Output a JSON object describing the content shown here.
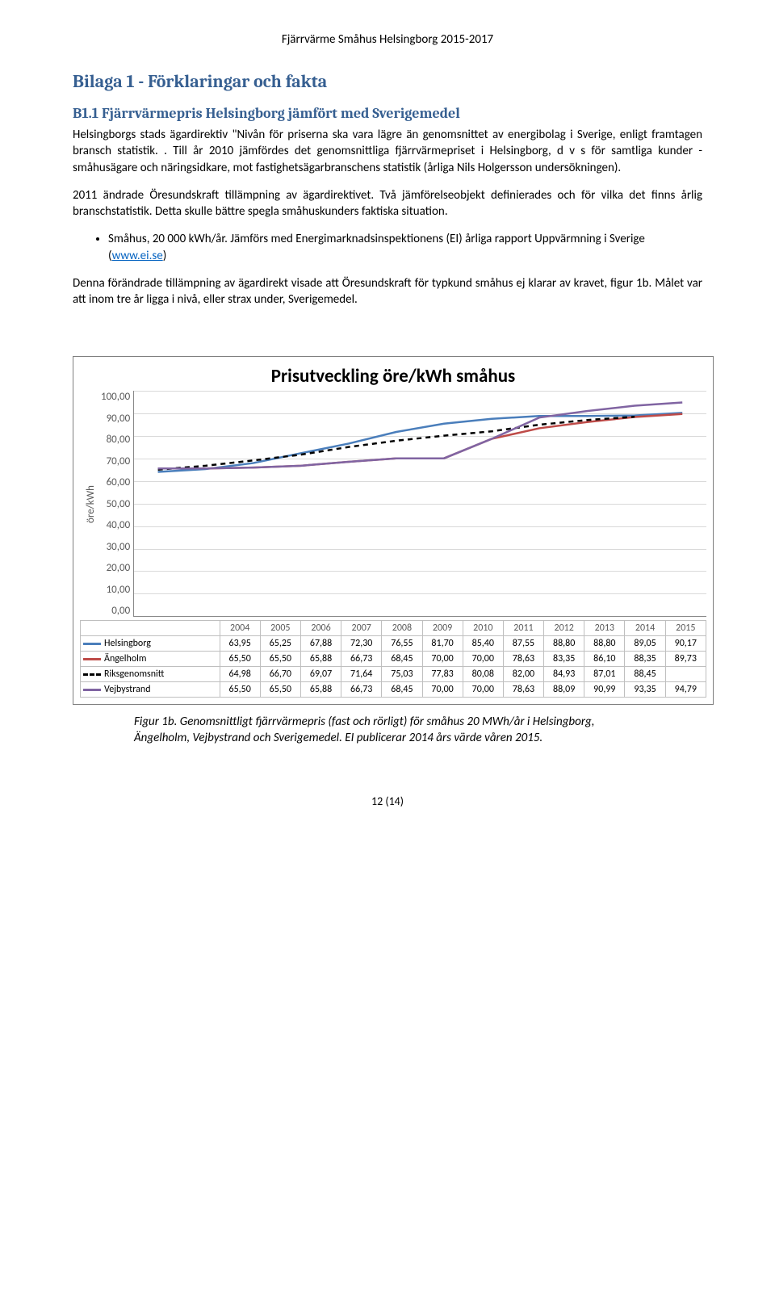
{
  "doc": {
    "header": "Fjärrvärme Småhus Helsingborg 2015-2017",
    "section_title": "Bilaga 1 - Förklaringar och fakta",
    "subsection_title": "B1.1 Fjärrvärmepris Helsingborg jämfört med Sverigemedel",
    "para1": "Helsingborgs stads ägardirektiv \"Nivån för priserna ska vara lägre än genomsnittet av energibolag i Sverige, enligt framtagen bransch statistik. . Till år 2010 jämfördes det genomsnittliga fjärrvärmepriset i Helsingborg, d v s för samtliga kunder - småhusägare och näringsidkare, mot fastighetsägarbranschens statistik (årliga Nils Holgersson undersökningen).",
    "para2": "2011 ändrade Öresundskraft tillämpning av ägardirektivet. Två jämförelseobjekt definierades och för vilka det finns årlig branschstatistik. Detta skulle bättre spegla småhuskunders faktiska situation.",
    "bullet1_a": "Småhus, 20 000 kWh/år. Jämförs med Energimarknadsinspektionens (EI) årliga rapport Uppvärmning i Sverige (",
    "bullet1_link": "www.ei.se",
    "bullet1_b": ")",
    "para3": "Denna förändrade tillämpning av ägardirekt visade att Öresundskraft för typkund småhus ej klarar av kravet, figur 1b. Målet var att inom tre år ligga i nivå, eller strax under, Sverigemedel.",
    "caption": "Figur 1b. Genomsnittligt fjärrvärmepris (fast och rörligt) för småhus 20 MWh/år i Helsingborg, Ängelholm, Vejbystrand och Sverigemedel. EI publicerar 2014 års värde våren 2015.",
    "page_num": "12 (14)"
  },
  "chart": {
    "title": "Prisutveckling öre/kWh småhus",
    "ylabel": "öre/kWh",
    "ymin": 0,
    "ymax": 100,
    "ytick_step": 10,
    "yticks": [
      "100,00",
      "90,00",
      "80,00",
      "70,00",
      "60,00",
      "50,00",
      "40,00",
      "30,00",
      "20,00",
      "10,00",
      "0,00"
    ],
    "years": [
      "2004",
      "2005",
      "2006",
      "2007",
      "2008",
      "2009",
      "2010",
      "2011",
      "2012",
      "2013",
      "2014",
      "2015"
    ],
    "grid_color": "#d9d9d9",
    "axis_color": "#888888",
    "series": [
      {
        "name": "Helsingborg",
        "color": "#4a7ebb",
        "dash": "",
        "values_num": [
          63.95,
          65.25,
          67.88,
          72.3,
          76.55,
          81.7,
          85.4,
          87.55,
          88.8,
          88.8,
          89.05,
          90.17
        ],
        "values_label": [
          "63,95",
          "65,25",
          "67,88",
          "72,30",
          "76,55",
          "81,70",
          "85,40",
          "87,55",
          "88,80",
          "88,80",
          "89,05",
          "90,17"
        ]
      },
      {
        "name": "Ängelholm",
        "color": "#be4b48",
        "dash": "",
        "values_num": [
          65.5,
          65.5,
          65.88,
          66.73,
          68.45,
          70.0,
          70.0,
          78.63,
          83.35,
          86.1,
          88.35,
          89.73
        ],
        "values_label": [
          "65,50",
          "65,50",
          "65,88",
          "66,73",
          "68,45",
          "70,00",
          "70,00",
          "78,63",
          "83,35",
          "86,10",
          "88,35",
          "89,73"
        ]
      },
      {
        "name": "Riksgenomsnitt",
        "color": "#000000",
        "dash": "6,5",
        "values_num": [
          64.98,
          66.7,
          69.07,
          71.64,
          75.03,
          77.83,
          80.08,
          82.0,
          84.93,
          87.01,
          88.45,
          null
        ],
        "values_label": [
          "64,98",
          "66,70",
          "69,07",
          "71,64",
          "75,03",
          "77,83",
          "80,08",
          "82,00",
          "84,93",
          "87,01",
          "88,45",
          ""
        ]
      },
      {
        "name": "Vejbystrand",
        "color": "#8064a2",
        "dash": "",
        "values_num": [
          65.5,
          65.5,
          65.88,
          66.73,
          68.45,
          70.0,
          70.0,
          78.63,
          88.09,
          90.99,
          93.35,
          94.79
        ],
        "values_label": [
          "65,50",
          "65,50",
          "65,88",
          "66,73",
          "68,45",
          "70,00",
          "70,00",
          "78,63",
          "88,09",
          "90,99",
          "93,35",
          "94,79"
        ]
      }
    ]
  }
}
